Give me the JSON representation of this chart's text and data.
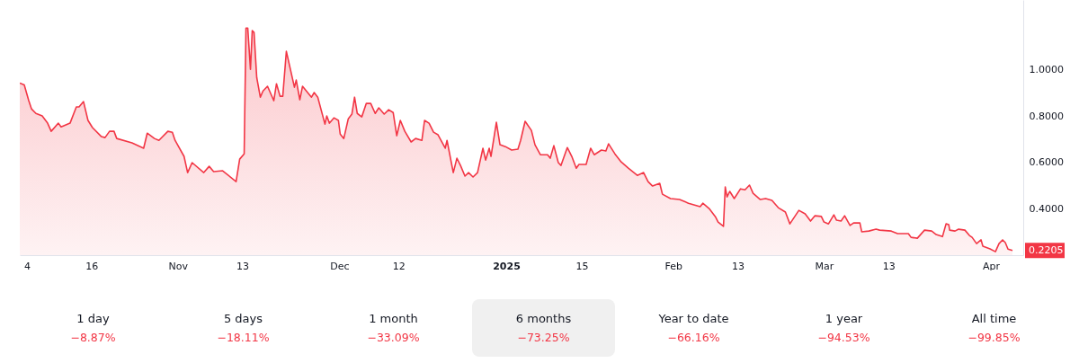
{
  "chart_data": {
    "type": "area",
    "x": [
      "2024-10-02T16:00",
      "2024-10-03T12:00",
      "2024-10-04T08:00",
      "2024-10-04T20:00",
      "2024-10-05T16:00",
      "2024-10-06T20:00",
      "2024-10-07T20:00",
      "2024-10-08T12:00",
      "2024-10-09T20:00",
      "2024-10-10T08:00",
      "2024-10-12T00:00",
      "2024-10-13T04:00",
      "2024-10-13T16:00",
      "2024-10-14T12:00",
      "2024-10-15T08:00",
      "2024-10-16T04:00",
      "2024-10-17T20:00",
      "2024-10-18T12:00",
      "2024-10-19T08:00",
      "2024-10-20T04:00",
      "2024-10-20T16:00",
      "2024-10-23T12:00",
      "2024-10-25T16:00",
      "2024-10-26T08:00",
      "2024-10-27T16:00",
      "2024-10-28T12:00",
      "2024-10-30T04:00",
      "2024-10-31T00:00",
      "2024-10-31T12:00",
      "2024-11-02T04:00",
      "2024-11-02T20:00",
      "2024-11-03T16:00",
      "2024-11-05T20:00",
      "2024-11-06T20:00",
      "2024-11-07T16:00",
      "2024-11-09T08:00",
      "2024-11-11T20:00",
      "2024-11-12T12:00",
      "2024-11-13T08:00",
      "2024-11-13T16:00",
      "2024-11-14T00:00",
      "2024-11-14T12:00",
      "2024-11-14T20:00",
      "2024-11-15T04:00",
      "2024-11-15T16:00",
      "2024-11-16T08:00",
      "2024-11-16T20:00",
      "2024-11-17T16:00",
      "2024-11-18T20:00",
      "2024-11-19T08:00",
      "2024-11-20T00:00",
      "2024-11-20T12:00",
      "2024-11-21T04:00",
      "2024-11-22T16:00",
      "2024-11-23T00:00",
      "2024-11-23T16:00",
      "2024-11-24T04:00",
      "2024-11-25T20:00",
      "2024-11-26T08:00",
      "2024-11-27T00:00",
      "2024-11-28T08:00",
      "2024-11-28T16:00",
      "2024-11-29T04:00",
      "2024-11-30T00:00",
      "2024-11-30T20:00",
      "2024-12-01T04:00",
      "2024-12-01T20:00",
      "2024-12-02T16:00",
      "2024-12-03T08:00",
      "2024-12-03T20:00",
      "2024-12-04T08:00",
      "2024-12-05T04:00",
      "2024-12-06T00:00",
      "2024-12-06T20:00",
      "2024-12-07T16:00",
      "2024-12-08T08:00",
      "2024-12-09T08:00",
      "2024-12-10T04:00",
      "2024-12-11T00:00",
      "2024-12-11T16:00",
      "2024-12-12T08:00",
      "2024-12-13T04:00",
      "2024-12-14T08:00",
      "2024-12-15T04:00",
      "2024-12-16T08:00",
      "2024-12-16T20:00",
      "2024-12-17T16:00",
      "2024-12-18T12:00",
      "2024-12-19T08:00",
      "2024-12-20T16:00",
      "2024-12-21T00:00",
      "2024-12-21T20:00",
      "2024-12-22T04:00",
      "2024-12-22T20:00",
      "2024-12-23T12:00",
      "2024-12-24T08:00",
      "2024-12-25T00:00",
      "2024-12-25T20:00",
      "2024-12-26T16:00",
      "2024-12-27T16:00",
      "2024-12-28T04:00",
      "2024-12-28T20:00",
      "2024-12-29T04:00",
      "2024-12-30T04:00",
      "2024-12-30T20:00",
      "2024-12-31T20:00",
      "2025-01-02T00:00",
      "2025-01-03T04:00",
      "2025-01-03T16:00",
      "2025-01-04T12:00",
      "2025-01-05T16:00",
      "2025-01-06T08:00",
      "2025-01-07T08:00",
      "2025-01-08T16:00",
      "2025-01-09T04:00",
      "2025-01-09T20:00",
      "2025-01-10T16:00",
      "2025-01-11T04:00",
      "2025-01-12T08:00",
      "2025-01-13T04:00",
      "2025-01-14T00:00",
      "2025-01-14T12:00",
      "2025-01-15T20:00",
      "2025-01-16T16:00",
      "2025-01-17T08:00",
      "2025-01-18T16:00",
      "2025-01-19T12:00",
      "2025-01-20T00:00",
      "2025-01-21T04:00",
      "2025-01-22T08:00",
      "2025-01-23T16:00",
      "2025-01-25T08:00",
      "2025-01-26T12:00",
      "2025-01-27T08:00",
      "2025-01-28T04:00",
      "2025-01-29T12:00",
      "2025-01-30T00:00",
      "2025-01-31T12:00",
      "2025-02-02T04:00",
      "2025-02-03T20:00",
      "2025-02-06T00:00",
      "2025-02-06T12:00",
      "2025-02-07T16:00",
      "2025-02-08T20:00",
      "2025-02-09T08:00",
      "2025-02-10T08:00",
      "2025-02-10T16:00",
      "2025-02-11T00:00",
      "2025-02-11T12:00",
      "2025-02-12T08:00",
      "2025-02-13T12:00",
      "2025-02-14T08:00",
      "2025-02-15T04:00",
      "2025-02-15T20:00",
      "2025-02-17T04:00",
      "2025-02-18T04:00",
      "2025-02-19T08:00",
      "2025-02-20T12:00",
      "2025-02-21T20:00",
      "2025-02-22T16:00",
      "2025-02-24T08:00",
      "2025-02-25T12:00",
      "2025-02-26T12:00",
      "2025-02-27T08:00",
      "2025-02-28T12:00",
      "2025-03-01T00:00",
      "2025-03-01T20:00",
      "2025-03-02T20:00",
      "2025-03-03T08:00",
      "2025-03-04T04:00",
      "2025-03-04T20:00",
      "2025-03-05T20:00",
      "2025-03-06T12:00",
      "2025-03-07T16:00",
      "2025-03-08T00:00",
      "2025-03-09T08:00",
      "2025-03-10T16:00",
      "2025-03-11T08:00",
      "2025-03-13T12:00",
      "2025-03-14T16:00",
      "2025-03-16T16:00",
      "2025-03-17T04:00",
      "2025-03-18T08:00",
      "2025-03-19T16:00",
      "2025-03-21T00:00",
      "2025-03-21T20:00",
      "2025-03-23T00:00",
      "2025-03-23T16:00",
      "2025-03-24T04:00",
      "2025-03-24T08:00",
      "2025-03-25T08:00",
      "2025-03-26T00:00",
      "2025-03-27T04:00",
      "2025-03-28T00:00",
      "2025-03-28T12:00",
      "2025-03-29T08:00",
      "2025-03-30T04:00",
      "2025-03-30T12:00",
      "2025-03-31T20:00",
      "2025-04-01T20:00",
      "2025-04-02T12:00",
      "2025-04-03T04:00",
      "2025-04-03T16:00",
      "2025-04-04T04:00",
      "2025-04-05T00:00"
    ],
    "series": [
      {
        "color": "#f23645",
        "values": [
          0.942,
          0.934,
          0.866,
          0.831,
          0.811,
          0.8,
          0.769,
          0.734,
          0.769,
          0.753,
          0.769,
          0.839,
          0.839,
          0.862,
          0.781,
          0.75,
          0.711,
          0.707,
          0.734,
          0.734,
          0.703,
          0.684,
          0.661,
          0.726,
          0.703,
          0.695,
          0.734,
          0.73,
          0.695,
          0.626,
          0.556,
          0.599,
          0.556,
          0.583,
          0.56,
          0.564,
          0.517,
          0.614,
          0.637,
          1.179,
          1.179,
          1.001,
          1.168,
          1.16,
          0.966,
          0.881,
          0.908,
          0.928,
          0.866,
          0.939,
          0.885,
          0.885,
          1.079,
          0.924,
          0.955,
          0.87,
          0.928,
          0.881,
          0.901,
          0.881,
          0.765,
          0.8,
          0.769,
          0.792,
          0.781,
          0.722,
          0.703,
          0.788,
          0.808,
          0.881,
          0.811,
          0.796,
          0.854,
          0.854,
          0.811,
          0.835,
          0.808,
          0.827,
          0.815,
          0.715,
          0.781,
          0.734,
          0.688,
          0.703,
          0.695,
          0.781,
          0.769,
          0.73,
          0.719,
          0.661,
          0.695,
          0.595,
          0.556,
          0.618,
          0.587,
          0.541,
          0.556,
          0.537,
          0.556,
          0.661,
          0.61,
          0.661,
          0.626,
          0.773,
          0.676,
          0.668,
          0.653,
          0.657,
          0.695,
          0.777,
          0.738,
          0.676,
          0.633,
          0.633,
          0.618,
          0.672,
          0.599,
          0.587,
          0.664,
          0.626,
          0.575,
          0.591,
          0.591,
          0.661,
          0.633,
          0.653,
          0.649,
          0.68,
          0.637,
          0.602,
          0.575,
          0.544,
          0.556,
          0.517,
          0.498,
          0.51,
          0.463,
          0.444,
          0.44,
          0.424,
          0.409,
          0.424,
          0.401,
          0.366,
          0.343,
          0.324,
          0.494,
          0.451,
          0.475,
          0.444,
          0.486,
          0.482,
          0.502,
          0.467,
          0.44,
          0.444,
          0.436,
          0.405,
          0.386,
          0.335,
          0.393,
          0.378,
          0.347,
          0.37,
          0.367,
          0.343,
          0.335,
          0.374,
          0.351,
          0.347,
          0.37,
          0.328,
          0.339,
          0.339,
          0.301,
          0.304,
          0.312,
          0.308,
          0.304,
          0.293,
          0.293,
          0.277,
          0.273,
          0.308,
          0.304,
          0.289,
          0.28,
          0.335,
          0.332,
          0.308,
          0.304,
          0.312,
          0.308,
          0.285,
          0.277,
          0.25,
          0.266,
          0.239,
          0.227,
          0.215,
          0.25,
          0.266,
          0.254,
          0.226,
          0.2205
        ]
      }
    ],
    "xlim": [
      "2024-10-02T16:00",
      "2025-04-07T00:00"
    ],
    "xticks": [
      {
        "value": "2024-10-04",
        "label": "4"
      },
      {
        "value": "2024-10-16",
        "label": "16"
      },
      {
        "value": "2024-11-01",
        "label": "Nov"
      },
      {
        "value": "2024-11-13",
        "label": "13"
      },
      {
        "value": "2024-12-01",
        "label": "Dec"
      },
      {
        "value": "2024-12-12",
        "label": "12"
      },
      {
        "value": "2025-01-01",
        "label": "2025"
      },
      {
        "value": "2025-01-15",
        "label": "15"
      },
      {
        "value": "2025-02-01",
        "label": "Feb"
      },
      {
        "value": "2025-02-13",
        "label": "13"
      },
      {
        "value": "2025-03-01",
        "label": "Mar"
      },
      {
        "value": "2025-03-13",
        "label": "13"
      },
      {
        "value": "2025-04-01",
        "label": "Apr"
      }
    ],
    "ylim": [
      0.2,
      1.3
    ],
    "yticks": [
      {
        "value": 0.4,
        "label": "0.4000"
      },
      {
        "value": 0.6,
        "label": "0.6000"
      },
      {
        "value": 0.8,
        "label": "0.8000"
      },
      {
        "value": 1.0,
        "label": "1.0000"
      }
    ],
    "annotations": [
      {
        "text": "0.2205",
        "y": 0.2205
      },
      "1 day",
      "−8.87%",
      "5 days",
      "−18.11%",
      "1 month",
      "−33.09%",
      "6 months",
      "−73.25%",
      "Year to date",
      "−66.16%",
      "1 year",
      "−94.53%",
      "All time",
      "−99.85%"
    ]
  }
}
